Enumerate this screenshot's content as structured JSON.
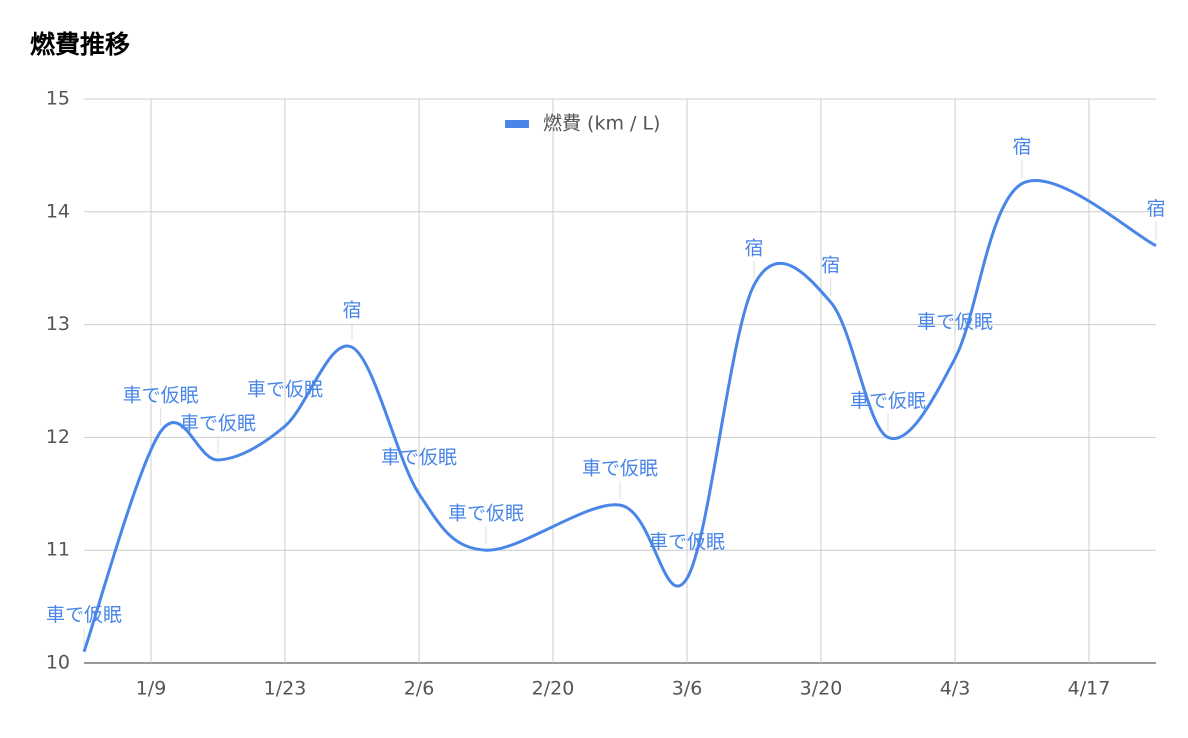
{
  "chart_data": {
    "type": "line",
    "title": "燃費推移",
    "x": [
      "1/2",
      "1/10",
      "1/16",
      "1/23",
      "1/30",
      "2/6",
      "2/13",
      "2/27",
      "3/6",
      "3/13",
      "3/21",
      "3/27",
      "4/3",
      "4/10",
      "4/24"
    ],
    "series": [
      {
        "name": "燃費 (km / L)",
        "color": "#4a86e8",
        "values": [
          10.1,
          12.05,
          11.8,
          12.1,
          12.8,
          11.5,
          11.0,
          11.4,
          10.75,
          13.35,
          13.2,
          12.0,
          12.7,
          14.25,
          13.7
        ],
        "annotations": [
          "車で仮眠",
          "車で仮眠",
          "車で仮眠",
          "車で仮眠",
          "宿",
          "車で仮眠",
          "車で仮眠",
          "車で仮眠",
          "車で仮眠",
          "宿",
          "宿",
          "車で仮眠",
          "車で仮眠",
          "宿",
          "宿"
        ]
      }
    ],
    "xlim": [
      "1/2",
      "4/24"
    ],
    "xticks": [
      "1/9",
      "1/23",
      "2/6",
      "2/20",
      "3/6",
      "3/20",
      "4/3",
      "4/17"
    ],
    "ylim": [
      10,
      15
    ],
    "yticks": [
      10,
      11,
      12,
      13,
      14,
      15
    ],
    "grid": true,
    "legend": "top",
    "smooth": true
  }
}
